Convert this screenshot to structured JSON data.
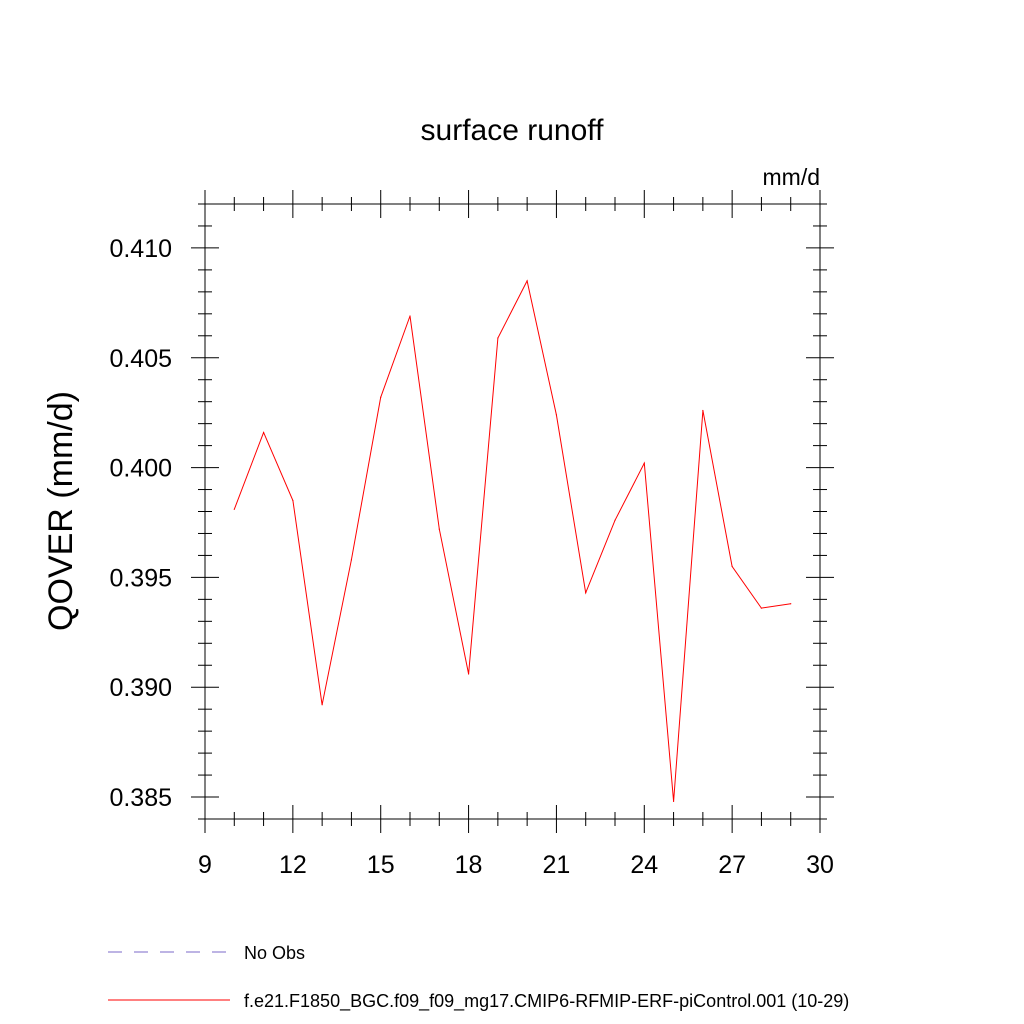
{
  "chart_data": {
    "type": "line",
    "title": "surface runoff",
    "units": "mm/d",
    "ylabel": "QOVER  (mm/d)",
    "xlabel": "",
    "xlim": [
      9,
      30
    ],
    "ylim": [
      0.384,
      0.412
    ],
    "xticks": [
      9,
      12,
      15,
      18,
      21,
      24,
      27,
      30
    ],
    "xtick_labels": [
      "9",
      "12",
      "15",
      "18",
      "21",
      "24",
      "27",
      "30"
    ],
    "yticks": [
      0.385,
      0.39,
      0.395,
      0.4,
      0.405,
      0.41
    ],
    "ytick_labels": [
      "0.385",
      "0.390",
      "0.395",
      "0.400",
      "0.405",
      "0.410"
    ],
    "grid": false,
    "legend_position": "bottom",
    "series": [
      {
        "name": "f.e21.F1850_BGC.f09_f09_mg17.CMIP6-RFMIP-ERF-piControl.001 (10-29)",
        "color": "#ff0000",
        "style": "solid",
        "x": [
          10,
          11,
          12,
          13,
          14,
          15,
          16,
          17,
          18,
          19,
          20,
          21,
          22,
          23,
          24,
          25,
          26,
          27,
          28,
          29
        ],
        "values": [
          0.3981,
          0.4016,
          0.3985,
          0.3892,
          0.3958,
          0.4032,
          0.4069,
          0.3972,
          0.3906,
          0.4059,
          0.4085,
          0.4024,
          0.3943,
          0.3976,
          0.4002,
          0.3848,
          0.4026,
          0.3955,
          0.3936,
          0.3938
        ]
      }
    ],
    "legend": [
      {
        "label": "No Obs",
        "color": "#7b68c8",
        "style": "dashed"
      },
      {
        "label": "f.e21.F1850_BGC.f09_f09_mg17.CMIP6-RFMIP-ERF-piControl.001 (10-29)",
        "color": "#ff0000",
        "style": "solid"
      }
    ]
  }
}
